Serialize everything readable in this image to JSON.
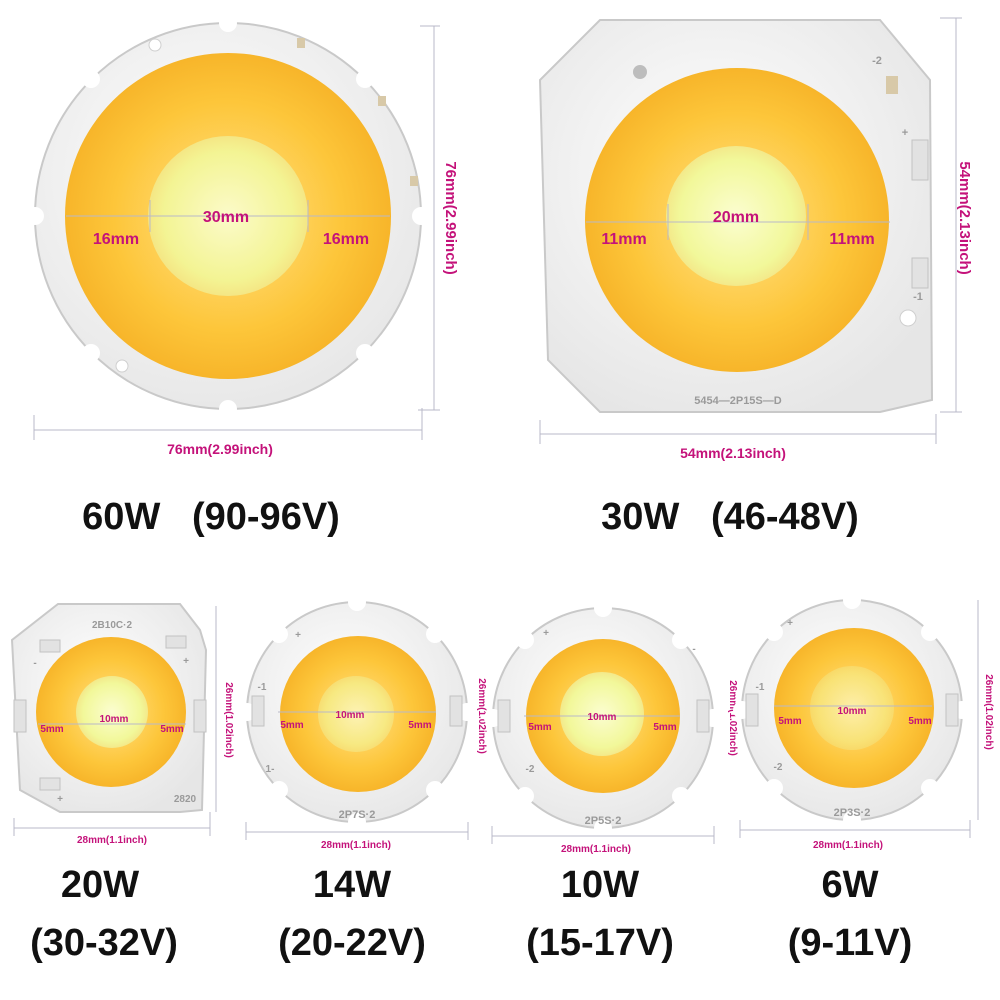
{
  "colors": {
    "pcb": "#f4f4f4",
    "pcb_edge": "#c9c9c9",
    "warm_phosphor": "#fdc63a",
    "warm_phosphor_light": "#ffd968",
    "cool_core": "#f6fb9e",
    "dimension_text": "#c4127a",
    "dimension_line": "#b9b9c8",
    "caption_text": "#111111"
  },
  "boards": [
    {
      "id": "60w",
      "center_dim": "30mm",
      "left_dim": "16mm",
      "right_dim": "16mm",
      "width_dim": "76mm(2.99inch)",
      "height_dim": "76mm(2.99inch)",
      "pcb_text": "",
      "caption_line1": "60W   (90-96V)",
      "caption_line2": ""
    },
    {
      "id": "30w",
      "center_dim": "20mm",
      "left_dim": "11mm",
      "right_dim": "11mm",
      "width_dim": "54mm(2.13inch)",
      "height_dim": "54mm(2.13inch)",
      "pcb_text": "5454—2P15S—D",
      "caption_line1": "30W   (46-48V)",
      "caption_line2": ""
    },
    {
      "id": "20w",
      "center_dim": "10mm",
      "left_dim": "5mm",
      "right_dim": "5mm",
      "width_dim": "28mm(1.1inch)",
      "height_dim": "26mm(1.02inch)",
      "pcb_text": "2B10C·2",
      "pcb_text2": "2820",
      "caption_line1": "20W",
      "caption_line2": "(30-32V)"
    },
    {
      "id": "14w",
      "center_dim": "10mm",
      "left_dim": "5mm",
      "right_dim": "5mm",
      "width_dim": "28mm(1.1inch)",
      "height_dim": "26mm(1.02inch)",
      "pcb_text": "2P7S·2",
      "caption_line1": "14W",
      "caption_line2": "(20-22V)"
    },
    {
      "id": "10w",
      "center_dim": "10mm",
      "left_dim": "5mm",
      "right_dim": "5mm",
      "width_dim": "28mm(1.1inch)",
      "height_dim": "26mm(1.02inch)",
      "pcb_text": "2P5S·2",
      "caption_line1": "10W",
      "caption_line2": "(15-17V)"
    },
    {
      "id": "6w",
      "center_dim": "10mm",
      "left_dim": "5mm",
      "right_dim": "5mm",
      "width_dim": "28mm(1.1inch)",
      "height_dim": "26mm(1.02inch)",
      "pcb_text": "2P3S·2",
      "caption_line1": "6W",
      "caption_line2": "(9-11V)"
    }
  ]
}
